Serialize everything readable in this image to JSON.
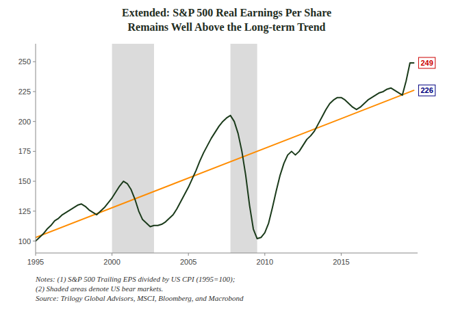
{
  "chart_data": {
    "type": "line",
    "title": "Extended: S&P 500 Real Earnings Per Share",
    "subtitle": "Remains Well Above the Long-term Trend",
    "xlim": [
      1995,
      2020
    ],
    "ylim": [
      90,
      265
    ],
    "xticks": [
      1995,
      2000,
      2005,
      2010,
      2015
    ],
    "yticks": [
      100,
      125,
      150,
      175,
      200,
      225,
      250
    ],
    "grid": false,
    "bear_markets": [
      [
        2000.0,
        2002.75
      ],
      [
        2007.75,
        2009.5
      ]
    ],
    "bear_color": "#b8b8b8",
    "series": [
      {
        "color": "#ff8c00",
        "x": [
          1995.0,
          2019.75
        ],
        "values": [
          103,
          226
        ]
      },
      {
        "color": "#1a3a1a",
        "x": [
          1995.0,
          1995.25,
          1995.5,
          1995.75,
          1996.0,
          1996.25,
          1996.5,
          1996.75,
          1997.0,
          1997.25,
          1997.5,
          1997.75,
          1998.0,
          1998.25,
          1998.5,
          1998.75,
          1999.0,
          1999.25,
          1999.5,
          1999.75,
          2000.0,
          2000.25,
          2000.5,
          2000.75,
          2001.0,
          2001.25,
          2001.5,
          2001.75,
          2002.0,
          2002.25,
          2002.5,
          2002.75,
          2003.0,
          2003.25,
          2003.5,
          2003.75,
          2004.0,
          2004.25,
          2004.5,
          2004.75,
          2005.0,
          2005.25,
          2005.5,
          2005.75,
          2006.0,
          2006.25,
          2006.5,
          2006.75,
          2007.0,
          2007.25,
          2007.5,
          2007.75,
          2008.0,
          2008.25,
          2008.5,
          2008.75,
          2009.0,
          2009.25,
          2009.5,
          2009.75,
          2010.0,
          2010.25,
          2010.5,
          2010.75,
          2011.0,
          2011.25,
          2011.5,
          2011.75,
          2012.0,
          2012.25,
          2012.5,
          2012.75,
          2013.0,
          2013.25,
          2013.5,
          2013.75,
          2014.0,
          2014.25,
          2014.5,
          2014.75,
          2015.0,
          2015.25,
          2015.5,
          2015.75,
          2016.0,
          2016.25,
          2016.5,
          2016.75,
          2017.0,
          2017.25,
          2017.5,
          2017.75,
          2018.0,
          2018.25,
          2018.5,
          2018.75,
          2019.0,
          2019.25,
          2019.5,
          2019.75
        ],
        "values": [
          100,
          103,
          106,
          110,
          113,
          117,
          119,
          122,
          124,
          126,
          128,
          130,
          131,
          129,
          126,
          124,
          122,
          125,
          128,
          132,
          136,
          141,
          146,
          150,
          148,
          143,
          135,
          125,
          118,
          115,
          112,
          113,
          113,
          114,
          116,
          119,
          122,
          127,
          133,
          139,
          145,
          152,
          159,
          167,
          174,
          180,
          186,
          191,
          196,
          200,
          203,
          205,
          200,
          190,
          175,
          155,
          130,
          110,
          102,
          103,
          107,
          115,
          128,
          142,
          155,
          165,
          172,
          175,
          172,
          175,
          180,
          185,
          188,
          192,
          198,
          204,
          210,
          215,
          218,
          220,
          220,
          218,
          215,
          212,
          210,
          212,
          215,
          218,
          220,
          222,
          224,
          225,
          227,
          228,
          226,
          224,
          222,
          234,
          249,
          249
        ]
      }
    ],
    "annotations": [
      {
        "text": "249",
        "x": 2019.75,
        "y": 249,
        "color": "#cc0000"
      },
      {
        "text": "226",
        "x": 2019.75,
        "y": 226,
        "color": "#000080"
      }
    ],
    "notes": [
      "Notes: (1) S&P 500 Trailing EPS divided by US CPI (1995=100);",
      "(2) Shaded areas denote US bear markets.",
      "Source: Trilogy Global Advisors, MSCI, Bloomberg, and Macrobond"
    ]
  }
}
